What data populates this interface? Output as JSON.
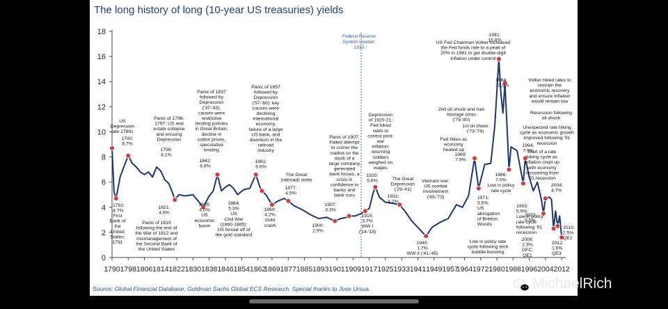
{
  "chart_data": {
    "type": "line",
    "title": "The long history of long (10-year US treasuries) yields",
    "source": "Source: Global Financial Database, Goldman Sachs Global ECS Research. Special thanks to Jose Ursua.",
    "xlabel": "",
    "ylabel": "",
    "xlim": [
      1790,
      2014
    ],
    "ylim": [
      0,
      18
    ],
    "y_ticks": [
      "0",
      "2",
      "4",
      "6",
      "8",
      "10",
      "12",
      "14",
      "16",
      "18"
    ],
    "x_ticks": [
      "1790",
      "1798",
      "1806",
      "1814",
      "1822",
      "1830",
      "1838",
      "1846",
      "1854",
      "1862",
      "1869",
      "1877",
      "1885",
      "1893",
      "1901",
      "1909",
      "1917",
      "1925",
      "1933",
      "1941",
      "1949",
      "1957",
      "1964",
      "1972",
      "1980",
      "1988",
      "1996",
      "2004",
      "2012"
    ],
    "grid": false,
    "series": [
      {
        "name": "US 10-year treasury yield (%)",
        "color": "#1a3570",
        "x": [
          1790,
          1791,
          1792,
          1794,
          1796,
          1798,
          1800,
          1802,
          1804,
          1806,
          1808,
          1810,
          1812,
          1814,
          1816,
          1818,
          1820,
          1821,
          1823,
          1826,
          1830,
          1835,
          1838,
          1840,
          1842,
          1844,
          1846,
          1848,
          1850,
          1852,
          1855,
          1858,
          1861,
          1863,
          1864,
          1866,
          1869,
          1872,
          1875,
          1877,
          1880,
          1884,
          1888,
          1892,
          1896,
          1900,
          1903,
          1906,
          1907,
          1910,
          1913,
          1915,
          1917,
          1919,
          1920,
          1922,
          1925,
          1929,
          1932,
          1935,
          1938,
          1941,
          1945,
          1948,
          1952,
          1956,
          1960,
          1963,
          1966,
          1969,
          1971,
          1974,
          1977,
          1979,
          1981,
          1982,
          1983,
          1984,
          1986,
          1987,
          1990,
          1993,
          1994,
          1996,
          1998,
          2000,
          2002,
          2003,
          2004,
          2006,
          2007,
          2008,
          2009,
          2010,
          2011,
          2012
        ],
        "values": [
          8.7,
          5.2,
          4.7,
          6.4,
          7.3,
          8.1,
          7.5,
          7.2,
          6.8,
          6.6,
          6.8,
          6.4,
          7.2,
          6.9,
          6.2,
          5.9,
          5.1,
          4.6,
          5.0,
          4.9,
          5.0,
          4.0,
          4.9,
          5.3,
          6.6,
          5.3,
          5.6,
          5.8,
          5.5,
          5.0,
          5.4,
          5.5,
          6.6,
          5.6,
          5.3,
          5.0,
          4.2,
          4.5,
          4.7,
          4.5,
          4.1,
          3.8,
          3.4,
          3.1,
          3.2,
          2.9,
          3.1,
          3.2,
          3.3,
          3.3,
          3.5,
          3.7,
          3.9,
          5.2,
          5.6,
          4.8,
          4.4,
          4.3,
          4.2,
          3.6,
          2.9,
          2.4,
          1.7,
          2.4,
          2.8,
          3.1,
          4.2,
          4.0,
          4.9,
          7.9,
          5.5,
          7.4,
          7.5,
          10.5,
          15.8,
          13.0,
          11.5,
          13.9,
          7.0,
          8.8,
          8.5,
          5.9,
          7.9,
          6.4,
          5.3,
          6.0,
          4.6,
          3.5,
          4.7,
          4.8,
          4.6,
          2.3,
          3.7,
          2.5,
          3.3,
          1.6
        ]
      }
    ],
    "highlight_points": [
      {
        "x": 1790,
        "y": 8.7
      },
      {
        "x": 1792,
        "y": 4.7
      },
      {
        "x": 1798,
        "y": 8.1
      },
      {
        "x": 1821,
        "y": 4.6
      },
      {
        "x": 1835,
        "y": 4.0
      },
      {
        "x": 1842,
        "y": 6.6
      },
      {
        "x": 1861,
        "y": 6.6
      },
      {
        "x": 1864,
        "y": 5.3
      },
      {
        "x": 1869,
        "y": 4.2
      },
      {
        "x": 1877,
        "y": 4.5
      },
      {
        "x": 1900,
        "y": 2.9
      },
      {
        "x": 1907,
        "y": 3.3
      },
      {
        "x": 1915,
        "y": 3.7
      },
      {
        "x": 1920,
        "y": 5.6
      },
      {
        "x": 1932,
        "y": 4.2
      },
      {
        "x": 1945,
        "y": 1.7
      },
      {
        "x": 1969,
        "y": 7.9
      },
      {
        "x": 1971,
        "y": 5.5
      },
      {
        "x": 1981,
        "y": 15.8
      },
      {
        "x": 1984,
        "y": 13.9
      },
      {
        "x": 1986,
        "y": 7.0
      },
      {
        "x": 1993,
        "y": 5.9
      },
      {
        "x": 1994,
        "y": 7.9
      },
      {
        "x": 2003,
        "y": 3.5
      },
      {
        "x": 2004,
        "y": 4.7
      },
      {
        "x": 2008,
        "y": 2.3
      },
      {
        "x": 2010,
        "y": 2.5
      },
      {
        "x": 2012,
        "y": 1.6
      }
    ],
    "reference_line": {
      "x": 1913,
      "label": [
        "Federal Reserve",
        "System created:",
        "1913"
      ]
    },
    "annotations": [
      {
        "lines": [
          "US",
          "Depression",
          "late 1780s"
        ]
      },
      {
        "lines": [
          "1790:",
          "8.7%"
        ]
      },
      {
        "lines": [
          "1792:",
          "4.7%"
        ]
      },
      {
        "lines": [
          "First",
          "Bank of",
          "the",
          "United",
          "States:",
          "1791"
        ]
      },
      {
        "lines": [
          "Panic of 1796-",
          "1797: US real",
          "estate collapse",
          "and ensuing",
          "Depression"
        ]
      },
      {
        "lines": [
          "1798:",
          "8.1%"
        ]
      },
      {
        "lines": [
          "1821:",
          "4.6%"
        ]
      },
      {
        "lines": [
          "Panic of 1819",
          "following the end of",
          "the War of 1812 and",
          "mismanagement of",
          "the Second Bank of",
          "the United States"
        ]
      },
      {
        "lines": [
          "Panic of 1837",
          "followed by",
          "Depression",
          "('37-'43):",
          "causes were",
          "restrictive",
          "lending policies",
          "in Great Britain,",
          "decline in",
          "cotton prices,",
          "speculative",
          "lending"
        ]
      },
      {
        "lines": [
          "1842:",
          "6.6%"
        ]
      },
      {
        "lines": [
          "1835:",
          "4.0%",
          "US",
          "economic",
          "boom"
        ]
      },
      {
        "lines": [
          "Panic of 1857",
          "followed by",
          "Depression",
          "('57-'60): key",
          "causes were",
          "declining",
          "international",
          "economy,",
          "failure of a large",
          "US bank, and",
          "downturn in the",
          "railroad",
          "industry"
        ]
      },
      {
        "lines": [
          "1861:",
          "6.6%"
        ]
      },
      {
        "lines": [
          "1864:",
          "5.3%",
          "US",
          "Civil War",
          "(1860-1865):",
          "US forced off of",
          "the gold standard"
        ]
      },
      {
        "lines": [
          "1869:",
          "4.2%",
          "Gold",
          "crash"
        ]
      },
      {
        "lines": [
          "The Great",
          "(railroad) strike"
        ]
      },
      {
        "lines": [
          "1877:",
          "4.5%"
        ]
      },
      {
        "lines": [
          "Panic of 1907:",
          "Failed attempt",
          "to corner the",
          "market on the",
          "stock of a",
          "large company",
          "generated",
          "bank losses, a",
          "crisis in",
          "confidence in",
          "banks and",
          "bank runs"
        ]
      },
      {
        "lines": [
          "1907:",
          "3.3%"
        ]
      },
      {
        "lines": [
          "1900:",
          "2.9%"
        ]
      },
      {
        "lines": [
          "Depression",
          "of 1920-21:",
          "Fed hiked",
          "rates to",
          "control post-",
          "war",
          "inflation;",
          "returning",
          "soldiers",
          "weighed on",
          "wages"
        ]
      },
      {
        "lines": [
          "1920:",
          "5.6%"
        ]
      },
      {
        "lines": [
          "1915:",
          "3.7%",
          "WW I",
          "('14-'18)"
        ]
      },
      {
        "lines": [
          "The Great",
          "Depression",
          "('29-'41)"
        ]
      },
      {
        "lines": [
          "1932:",
          "4.2%"
        ]
      },
      {
        "lines": [
          "1945:",
          "1.7%",
          "WW II ('41-'45)"
        ]
      },
      {
        "lines": [
          "US Fed Chairman Volker increased",
          "the Fed funds rate to a peak of",
          "20% in 1981 to get double-digit",
          "inflation under control"
        ]
      },
      {
        "lines": [
          "1981:",
          "15.8%"
        ]
      },
      {
        "lines": [
          "1984:",
          "13.9%"
        ]
      },
      {
        "lines": [
          "Volker hiked rates to",
          "restrain the",
          "economic recovery",
          "and ensure inflation",
          "would remain low"
        ]
      },
      {
        "lines": [
          "2nd oil shock and Iran",
          "hostage crisis",
          "('79-'80)"
        ]
      },
      {
        "lines": [
          "1st oil shock",
          "('73-'74)"
        ]
      },
      {
        "lines": [
          "Recession following",
          "oil shock"
        ]
      },
      {
        "lines": [
          "Fed hikes as",
          "economy",
          "heated up"
        ]
      },
      {
        "lines": [
          "1969:",
          "7.9%"
        ]
      },
      {
        "lines": [
          "Unexpected rate hiking",
          "cycle as economic growth",
          "improved following '91",
          "recession"
        ]
      },
      {
        "lines": [
          "1994:",
          "7.9%"
        ]
      },
      {
        "lines": [
          "Start of a rate",
          "hiking cycle as",
          "inflation crept up",
          "with economy",
          "recovering from",
          "'01 recession"
        ]
      },
      {
        "lines": [
          "2004:",
          "4.7%"
        ]
      },
      {
        "lines": [
          "1986:",
          "7.0%",
          "Low in policy",
          "rate cycle"
        ]
      },
      {
        "lines": [
          "Vietnam war:",
          "US combat",
          "involvement",
          "('65-'73)"
        ]
      },
      {
        "lines": [
          "1971:",
          "5.5%",
          "US",
          "abrogation",
          "of Bretton",
          "Woods"
        ]
      },
      {
        "lines": [
          "1993:",
          "5.9%",
          "Low in policy",
          "rate cycle",
          "following '91",
          "recession"
        ]
      },
      {
        "lines": [
          "2003:",
          "3.5%"
        ]
      },
      {
        "lines": [
          "Low in policy rate",
          "cycle following tech",
          "bubble bursting"
        ]
      },
      {
        "lines": [
          "2008:",
          "2.3%",
          "GFC:",
          "QE1"
        ]
      },
      {
        "lines": [
          "2010:",
          "2.5%",
          "QE2"
        ]
      },
      {
        "lines": [
          "2012:",
          "1.6%",
          "QE3"
        ]
      }
    ]
  },
  "watermark": {
    "icon": "chat-bubbles-icon",
    "text": "MichaelRich"
  }
}
